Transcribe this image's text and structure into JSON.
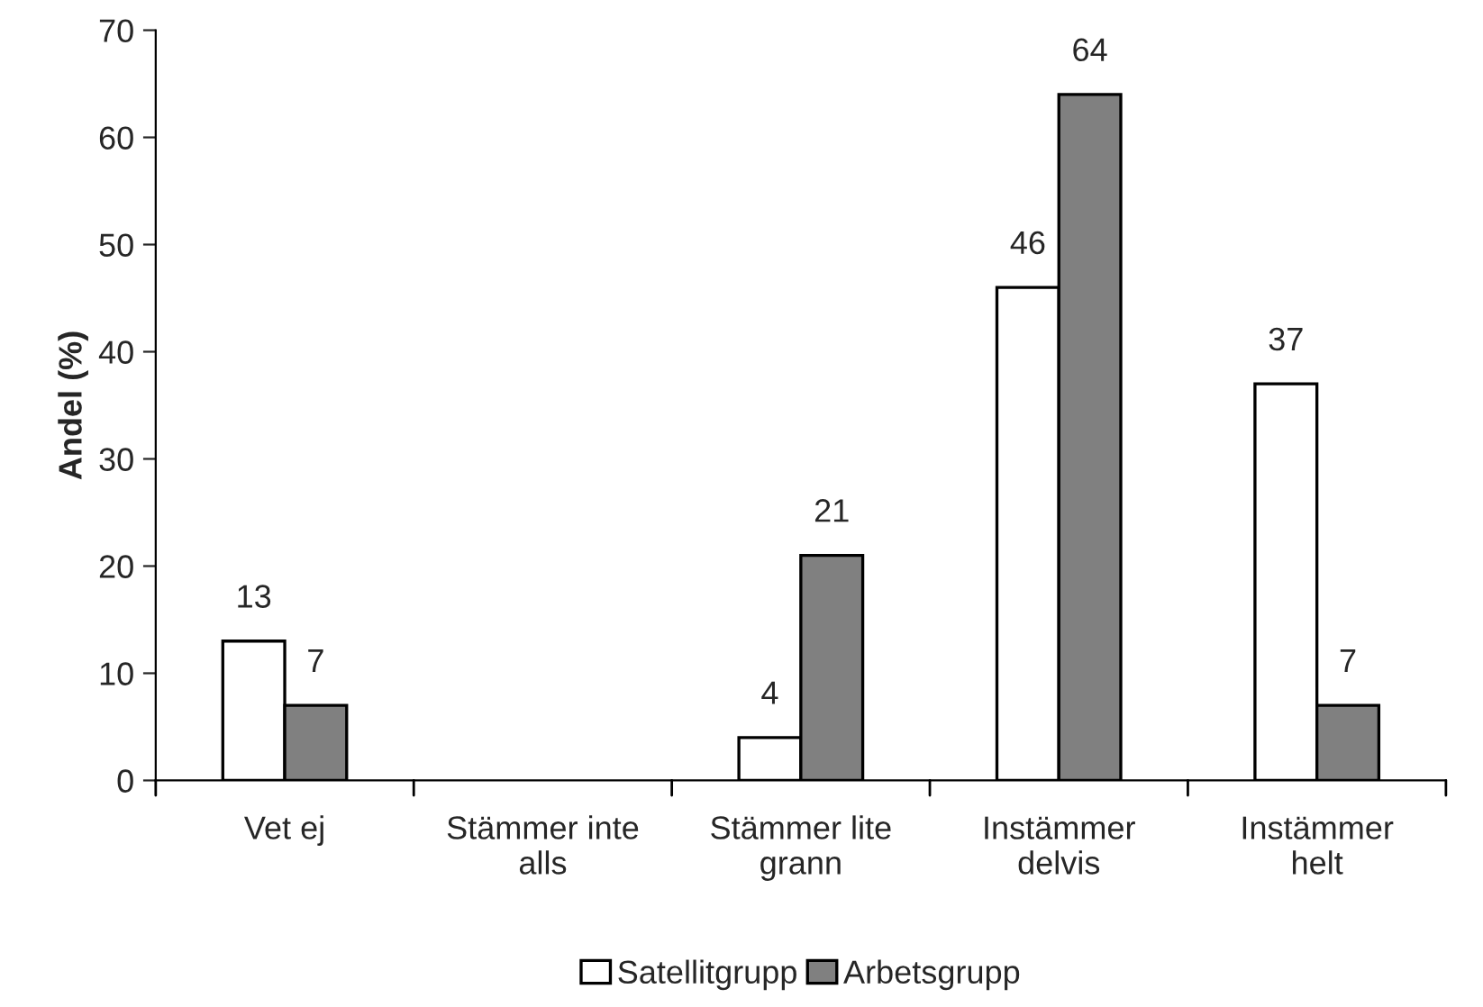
{
  "chart_data": {
    "type": "bar",
    "ylabel": "Andel (%)",
    "categories": [
      "Vet ej",
      "Stämmer inte\nalls",
      "Stämmer lite\ngrann",
      "Instämmer\ndelvis",
      "Instämmer\nhelt"
    ],
    "series": [
      {
        "name": "Satellitgrupp",
        "color": "#ffffff",
        "values": [
          13,
          null,
          4,
          46,
          37
        ],
        "value_labels": [
          "13",
          null,
          "4",
          "46",
          "37"
        ]
      },
      {
        "name": "Arbetsgrupp",
        "color": "#808080",
        "values": [
          7,
          null,
          21,
          64,
          7
        ],
        "value_labels": [
          "7",
          null,
          "21",
          "64",
          "7"
        ]
      }
    ],
    "ylim": [
      0,
      70
    ],
    "yticks": [
      0,
      10,
      20,
      30,
      40,
      50,
      60,
      70
    ],
    "grid": false,
    "legend": "bottom"
  }
}
